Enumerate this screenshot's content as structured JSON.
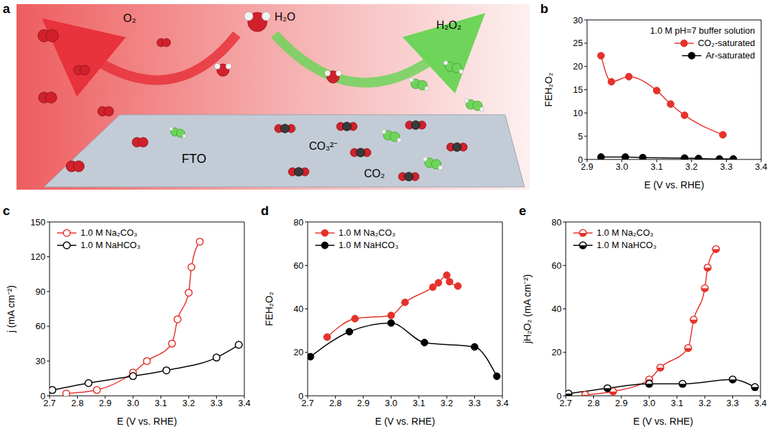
{
  "schematic": {
    "panel": "a",
    "labels": {
      "o2": "O₂",
      "h2o": "H₂O",
      "h2o2": "H₂O₂",
      "fto": "FTO",
      "carbonate": "CO₃²⁻",
      "co2": "CO₂"
    }
  },
  "chart_data": [
    {
      "panel": "b",
      "type": "line",
      "annotation": "1.0 M pH=7 buffer solution",
      "xlabel": "E (V vs. RHE)",
      "ylabel": "FEH₂O₂",
      "xlim": [
        2.9,
        3.4
      ],
      "xticks": [
        2.9,
        {
          "value": 3,
          "label": "3.0"
        },
        3.1,
        3.2,
        3.3,
        3.4
      ],
      "ylim": [
        0,
        30
      ],
      "yticks": [
        0,
        5,
        10,
        15,
        20,
        25,
        30
      ],
      "legend": "upper right",
      "marker": "circle",
      "series": [
        {
          "name": "CO₂-saturated",
          "color": "#e5322b",
          "x": [
            2.94,
            2.97,
            3.02,
            3.1,
            3.14,
            3.18,
            3.29
          ],
          "values": [
            22.3,
            16.7,
            17.8,
            14.8,
            11.9,
            9.5,
            5.3
          ]
        },
        {
          "name": "Ar-saturated",
          "color": "#000000",
          "x": [
            2.94,
            3.01,
            3.06,
            3.18,
            3.22,
            3.28,
            3.32
          ],
          "values": [
            0.5,
            0.5,
            0.4,
            0.3,
            0.2,
            0.1,
            0.1
          ]
        }
      ]
    },
    {
      "panel": "c",
      "type": "line",
      "xlabel": "E (V vs. RHE)",
      "ylabel": "j (mA cm⁻²)",
      "xlim": [
        2.7,
        3.4
      ],
      "xticks": [
        2.7,
        2.8,
        2.9,
        {
          "value": 3,
          "label": "3.0"
        },
        3.1,
        3.2,
        3.3,
        3.4
      ],
      "ylim": [
        0,
        150
      ],
      "yticks": [
        0,
        30,
        60,
        90,
        120,
        150
      ],
      "legend": "upper left",
      "marker": "open_circle",
      "series": [
        {
          "name": "1.0 M Na₂CO₃",
          "color": "#e5322b",
          "x": [
            2.76,
            2.87,
            3.0,
            3.05,
            3.14,
            3.16,
            3.2,
            3.21,
            3.24
          ],
          "values": [
            2,
            5,
            20,
            30,
            45,
            66,
            89,
            111,
            133
          ]
        },
        {
          "name": "1.0 M NaHCO₃",
          "color": "#000000",
          "x": [
            2.71,
            2.84,
            3.0,
            3.12,
            3.3,
            3.38
          ],
          "values": [
            5,
            11,
            17,
            22,
            33,
            44
          ]
        }
      ]
    },
    {
      "panel": "d",
      "type": "line",
      "xlabel": "E (V vs. RHE)",
      "ylabel": "FEH₂O₂",
      "xlim": [
        2.7,
        3.4
      ],
      "xticks": [
        2.7,
        2.8,
        2.9,
        {
          "value": 3,
          "label": "3.0"
        },
        3.1,
        3.2,
        3.3,
        3.4
      ],
      "ylim": [
        0,
        80
      ],
      "yticks": [
        0,
        20,
        40,
        60,
        80
      ],
      "legend": "upper left",
      "marker": "circle",
      "series": [
        {
          "name": "1.0 M Na₂CO₃",
          "color": "#e5322b",
          "x": [
            2.77,
            2.87,
            3.0,
            3.05,
            3.15,
            3.17,
            3.2,
            3.21,
            3.24
          ],
          "values": [
            27,
            35.5,
            37,
            43,
            50,
            52,
            55.5,
            52.5,
            50.5
          ]
        },
        {
          "name": "1.0 M NaHCO₃",
          "color": "#000000",
          "x": [
            2.71,
            2.85,
            3.0,
            3.12,
            3.3,
            3.38
          ],
          "values": [
            18,
            29.5,
            33.5,
            24.5,
            22.5,
            9
          ]
        }
      ]
    },
    {
      "panel": "e",
      "type": "line",
      "xlabel": "E (V vs. RHE)",
      "ylabel": "jH₂O₂ (mA cm⁻²)",
      "xlim": [
        2.7,
        3.4
      ],
      "xticks": [
        2.7,
        2.8,
        2.9,
        {
          "value": 3,
          "label": "3.0"
        },
        3.1,
        3.2,
        3.3,
        3.4
      ],
      "ylim": [
        0,
        80
      ],
      "yticks": [
        0,
        20,
        40,
        60,
        80
      ],
      "legend": "upper left",
      "marker": "half_circle",
      "series": [
        {
          "name": "1.0 M Na₂CO₃",
          "color": "#e5322b",
          "x": [
            2.77,
            2.87,
            3.0,
            3.04,
            3.14,
            3.16,
            3.2,
            3.21,
            3.24
          ],
          "values": [
            0.5,
            2,
            7.5,
            13,
            22,
            35,
            49.5,
            59,
            67.5
          ]
        },
        {
          "name": "1.0 M NaHCO₃",
          "color": "#000000",
          "x": [
            2.71,
            2.85,
            3.0,
            3.12,
            3.3,
            3.38
          ],
          "values": [
            1,
            3.5,
            5.5,
            5.5,
            7.5,
            4
          ]
        }
      ]
    }
  ]
}
